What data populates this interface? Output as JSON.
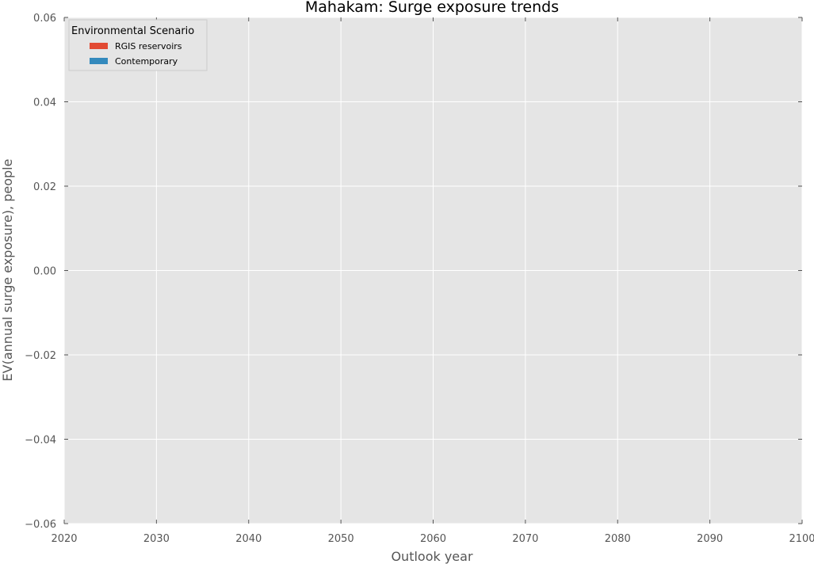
{
  "chart_data": {
    "type": "area",
    "title": "Mahakam: Surge exposure trends",
    "xlabel": "Outlook year",
    "ylabel": "EV(annual surge exposure), people",
    "xlim": [
      2020,
      2100
    ],
    "ylim": [
      -0.06,
      0.06
    ],
    "x_ticks": [
      2020,
      2030,
      2040,
      2050,
      2060,
      2070,
      2080,
      2090,
      2100
    ],
    "x_tick_labels": [
      "2020",
      "2030",
      "2040",
      "2050",
      "2060",
      "2070",
      "2080",
      "2090",
      "2100"
    ],
    "y_ticks": [
      0.06,
      0.04,
      0.02,
      0.0,
      -0.02,
      -0.04,
      -0.06
    ],
    "y_tick_labels": [
      "0.06",
      "0.04",
      "0.02",
      "0.00",
      "−0.02",
      "−0.04",
      "−0.06"
    ],
    "grid": true,
    "legend": {
      "title": "Environmental Scenario",
      "placement": "top-left",
      "entries": [
        {
          "label": "RGIS reservoirs",
          "color": "#e24a33"
        },
        {
          "label": "Contemporary",
          "color": "#348abd"
        }
      ]
    },
    "series": [
      {
        "name": "RGIS reservoirs",
        "color": "#e24a33",
        "x": [],
        "values": []
      },
      {
        "name": "Contemporary",
        "color": "#348abd",
        "x": [],
        "values": []
      }
    ]
  },
  "colors": {
    "plot_background": "#e5e5e5",
    "grid": "#ffffff",
    "tick_mark": "#555555"
  }
}
